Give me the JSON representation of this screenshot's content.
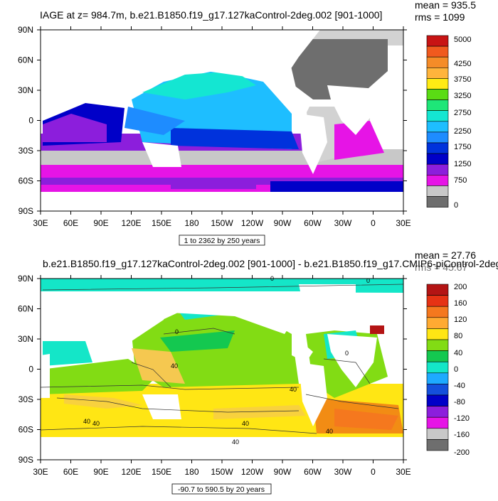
{
  "chart_data": [
    {
      "type": "heatmap",
      "title": "IAGE at z= 984.7m, b.e21.B1850.f19_g17.127kaControl-2deg.002 [901-1000]",
      "stats": [
        "mean = 935.5",
        "rms = 1099"
      ],
      "range_label": "1 to 2362 by 250 years",
      "xlabel": "",
      "ylabel": "",
      "x_ticks": [
        "30E",
        "60E",
        "90E",
        "120E",
        "150E",
        "180",
        "150W",
        "120W",
        "90W",
        "60W",
        "30W",
        "0",
        "30E"
      ],
      "y_ticks": [
        "90N",
        "60N",
        "30N",
        "0",
        "30S",
        "60S",
        "90S"
      ],
      "legend": {
        "labels": [
          "5000",
          "4250",
          "3750",
          "3250",
          "2750",
          "2250",
          "1750",
          "1250",
          "750",
          "0"
        ],
        "colors": [
          "#c81414",
          "#f05a1e",
          "#f58c28",
          "#ffb43c",
          "#ffeb14",
          "#5adc14",
          "#1ee678",
          "#14e6d2",
          "#1ebeff",
          "#1e8cff",
          "#0032dc",
          "#0000c8",
          "#8c1edc",
          "#e614e6",
          "#c8c8c8",
          "#6e6e6e"
        ]
      },
      "zero_contour_label": ""
    },
    {
      "type": "heatmap",
      "title": "b.e21.B1850.f19_g17.127kaControl-2deg.002 [901-1000] - b.e21.B1850.f19_g17.CMIP6-piControl-2deg",
      "stats": [
        "mean = 27.76",
        "rms = 45.67"
      ],
      "range_label": "-90.7 to 590.5 by 20 years",
      "xlabel": "",
      "ylabel": "",
      "x_ticks": [
        "30E",
        "60E",
        "90E",
        "120E",
        "150E",
        "180",
        "150W",
        "120W",
        "90W",
        "60W",
        "30W",
        "0",
        "30E"
      ],
      "y_ticks": [
        "90N",
        "60N",
        "30N",
        "0",
        "30S",
        "60S",
        "90S"
      ],
      "legend": {
        "labels": [
          "200",
          "160",
          "120",
          "80",
          "40",
          "0",
          "-40",
          "-80",
          "-120",
          "-160",
          "-200"
        ],
        "colors": [
          "#b41414",
          "#e63214",
          "#f5781e",
          "#ffaa32",
          "#ffe614",
          "#82dc14",
          "#14c850",
          "#14e6c8",
          "#1eaaff",
          "#1450dc",
          "#0000c8",
          "#8c1edc",
          "#e614e6",
          "#c8c8c8",
          "#6e6e6e"
        ]
      },
      "contour_labels": [
        "0",
        "40",
        "40",
        "40",
        "40",
        "40",
        "40",
        "40",
        "0",
        "0",
        "0"
      ]
    }
  ]
}
